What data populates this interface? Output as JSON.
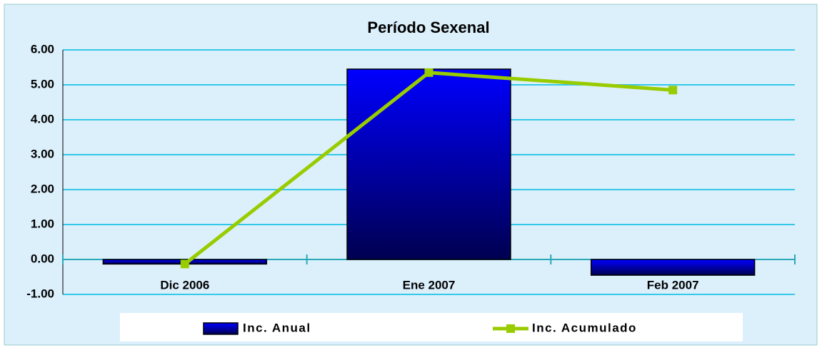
{
  "chart_data": {
    "type": "bar",
    "title": "Período Sexenal",
    "categories": [
      "Dic 2006",
      "Ene 2007",
      "Feb 2007"
    ],
    "series": [
      {
        "name": "Inc. Anual",
        "type": "bar",
        "color": "#0000e0",
        "values": [
          -0.13,
          5.45,
          -0.45
        ]
      },
      {
        "name": "Inc. Acumulado",
        "type": "line",
        "color": "#99cc00",
        "values": [
          -0.13,
          5.35,
          4.85
        ]
      }
    ],
    "ylim": [
      -1,
      6
    ],
    "yticks": [
      {
        "value": -1,
        "label": "-1.00"
      },
      {
        "value": 0,
        "label": "0.00"
      },
      {
        "value": 1,
        "label": "1.00"
      },
      {
        "value": 2,
        "label": "2.00"
      },
      {
        "value": 3,
        "label": "3.00"
      },
      {
        "value": 4,
        "label": "4.00"
      },
      {
        "value": 5,
        "label": "5.00"
      },
      {
        "value": 6,
        "label": "6.00"
      }
    ],
    "grid": true,
    "legend": "bottom"
  }
}
